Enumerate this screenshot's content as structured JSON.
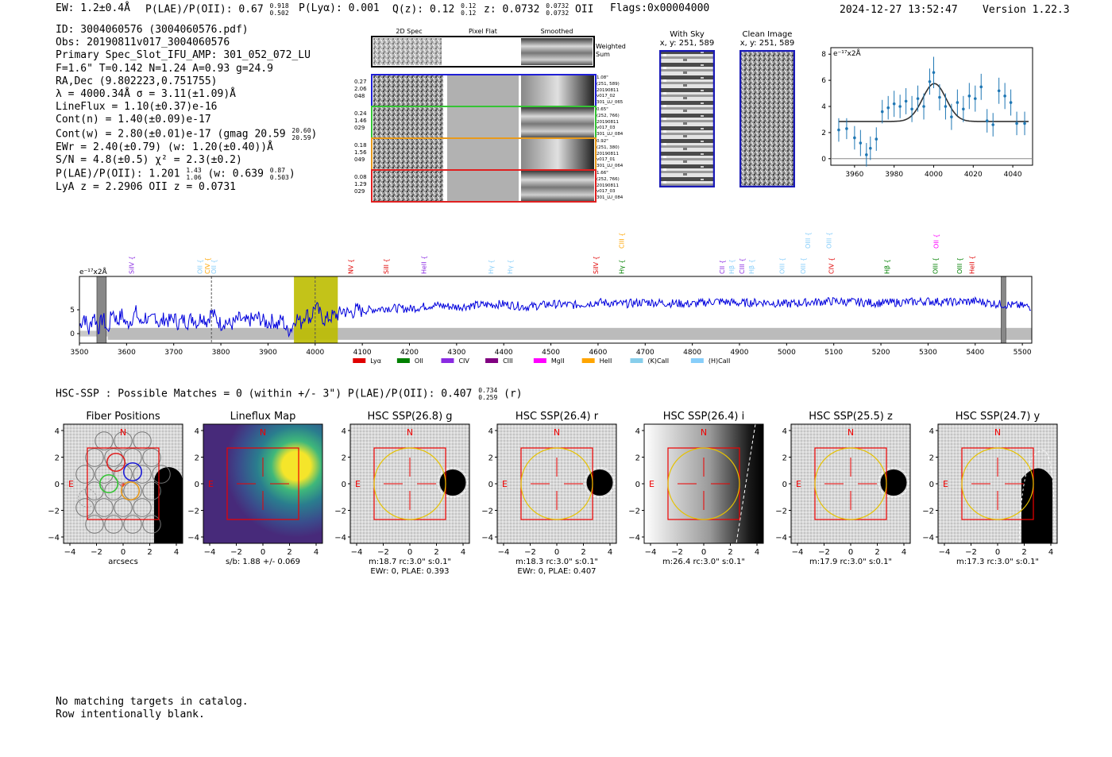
{
  "header": {
    "ew": "EW: 1.2±0.4Å",
    "plae_label": "P(LAE)/P(OII): 0.67",
    "plae_hi": "0.918",
    "plae_lo": "0.502",
    "plya": "P(Lyα): 0.001",
    "qz_label": "Q(z): 0.12",
    "qz_hi": "0.12",
    "qz_lo": "0.12",
    "z_label": "z: 0.0732",
    "z_hi": "0.0732",
    "z_lo": "0.0732",
    "z_suffix": "OII",
    "flags": "Flags:0x00004000",
    "datetime": "2024-12-27 13:52:47",
    "version": "Version 1.22.3"
  },
  "info": {
    "id": "ID: 3004060576 (3004060576.pdf)",
    "obs": "Obs: 20190811v017_3004060576",
    "primary": "Primary Spec_Slot_IFU_AMP: 301_052_072_LU",
    "fparams": "F=1.6\"  T=0.142  N=1.24  A=0.93  g=24.9",
    "radec": "RA,Dec (9.802223,0.751755)",
    "lambda": "λ = 4000.34Å   σ = 3.11(±1.09)Å",
    "lineflux": "LineFlux = 1.10(±0.37)e-16",
    "contn": "Cont(n) = 1.40(±0.09)e-17",
    "contw": "Cont(w) = 2.80(±0.01)e-17 (gmag 20.59",
    "contw_hi": "20.60",
    "contw_lo": "20.59",
    "contw_end": ")",
    "ewr": "EWr = 2.40(±0.79) (w: 1.20(±0.40))Å",
    "sn": "S/N = 4.8(±0.5)  χ² = 2.3(±0.2)",
    "plae": "P(LAE)/P(OII): 1.201",
    "plae_hi": "1.43",
    "plae_lo": "1.06",
    "plae_mid": " (w: 0.639",
    "plae_w_hi": "0.87",
    "plae_w_lo": "0.503",
    "plae_end": ")",
    "redshifts": "LyA z = 2.2906  OII z = 0.0731"
  },
  "cutouts": {
    "col_titles": [
      "2D Spec",
      "Pixel Flat",
      "Smoothed"
    ],
    "weighted_label": "Weighted\nSum",
    "rows": [
      {
        "left": [
          "0.27",
          "2.06",
          "048"
        ],
        "right": [
          "1.08\"",
          "(251, 589)",
          "20190811",
          "v017_02",
          "301_LU_065"
        ],
        "color": "#1f1fd6"
      },
      {
        "left": [
          "0.24",
          "1.46",
          "029"
        ],
        "right": [
          "0.65\"",
          "(252, 766)",
          "20190811",
          "v017_03",
          "301_LU_084"
        ],
        "color": "#35c435"
      },
      {
        "left": [
          "0.18",
          "1.56",
          "049"
        ],
        "right": [
          "0.92\"",
          "(251, 380)",
          "20190811",
          "v017_01",
          "301_LU_064"
        ],
        "color": "#e89a1c"
      },
      {
        "left": [
          "0.08",
          "1.29",
          "029"
        ],
        "right": [
          "1.66\"",
          "(252, 766)",
          "20190811",
          "v017_03",
          "301_LU_084"
        ],
        "color": "#e02020"
      }
    ]
  },
  "sky": {
    "with_sky_title": "With Sky",
    "with_sky_xy": "x, y: 251, 589",
    "clean_title": "Clean Image",
    "clean_xy": "x, y: 251, 589"
  },
  "fit_plot": {
    "unit_label": "e⁻¹⁷x2Å",
    "xticks": [
      "3960",
      "3980",
      "4000",
      "4020",
      "4040"
    ],
    "yticks": [
      "0",
      "2",
      "4",
      "6",
      "8"
    ]
  },
  "spectrum": {
    "unit_label": "e⁻¹⁷x2Å",
    "xticks": [
      "3500",
      "3600",
      "3700",
      "3800",
      "3900",
      "4000",
      "4100",
      "4200",
      "4300",
      "4400",
      "4500",
      "4600",
      "4700",
      "4800",
      "4900",
      "5000",
      "5100",
      "5200",
      "5300",
      "5400",
      "5500"
    ],
    "yticks": [
      "0",
      "5"
    ],
    "line_markers": [
      {
        "label": "SiIV",
        "x": 3615,
        "tier": 0,
        "color": "#8a2be2"
      },
      {
        "label": "OII",
        "x": 3760,
        "tier": 0,
        "color": "#87cefa"
      },
      {
        "label": "CIV",
        "x": 3776,
        "tier": 0,
        "color": "#ffa500"
      },
      {
        "label": "OII",
        "x": 3790,
        "tier": 0,
        "color": "#87cefa"
      },
      {
        "label": "NV",
        "x": 4080,
        "tier": 0,
        "color": "#e00000"
      },
      {
        "label": "SiII",
        "x": 4155,
        "tier": 0,
        "color": "#e00000"
      },
      {
        "label": "HeII",
        "x": 4235,
        "tier": 0,
        "color": "#8a2be2"
      },
      {
        "label": "Hγ",
        "x": 4378,
        "tier": 0,
        "color": "#87cefa"
      },
      {
        "label": "Hγ",
        "x": 4418,
        "tier": 0,
        "color": "#87cefa"
      },
      {
        "label": "SiIV",
        "x": 4600,
        "tier": 0,
        "color": "#e00000"
      },
      {
        "label": "Hγ",
        "x": 4655,
        "tier": 0,
        "color": "#008000"
      },
      {
        "label": "CIII",
        "x": 4655,
        "tier": 1,
        "color": "#ffa500"
      },
      {
        "label": "CII",
        "x": 4868,
        "tier": 0,
        "color": "#8a2be2"
      },
      {
        "label": "Hβ",
        "x": 4888,
        "tier": 0,
        "color": "#87cefa"
      },
      {
        "label": "CIII",
        "x": 4910,
        "tier": 0,
        "color": "#8a2be2"
      },
      {
        "label": "Hβ",
        "x": 4930,
        "tier": 0,
        "color": "#87cefa"
      },
      {
        "label": "OIII",
        "x": 4995,
        "tier": 0,
        "color": "#87cefa"
      },
      {
        "label": "OIII",
        "x": 5040,
        "tier": 0,
        "color": "#87cefa"
      },
      {
        "label": "CIV",
        "x": 5100,
        "tier": 0,
        "color": "#e00000"
      },
      {
        "label": "OIII",
        "x": 5050,
        "tier": 1,
        "color": "#87cefa"
      },
      {
        "label": "OIII",
        "x": 5095,
        "tier": 1,
        "color": "#87cefa"
      },
      {
        "label": "Hβ",
        "x": 5218,
        "tier": 0,
        "color": "#008000"
      },
      {
        "label": "OIII",
        "x": 5320,
        "tier": 0,
        "color": "#008000"
      },
      {
        "label": "OII",
        "x": 5322,
        "tier": 1,
        "color": "#ff00ff"
      },
      {
        "label": "OIII",
        "x": 5372,
        "tier": 0,
        "color": "#008000"
      },
      {
        "label": "HeII",
        "x": 5398,
        "tier": 0,
        "color": "#e00000"
      }
    ],
    "legend": [
      {
        "label": "Lyα",
        "color": "#e00000"
      },
      {
        "label": "OII",
        "color": "#008000"
      },
      {
        "label": "CIV",
        "color": "#8a2be2"
      },
      {
        "label": "CIII",
        "color": "#800080"
      },
      {
        "label": "MgII",
        "color": "#ff00ff"
      },
      {
        "label": "HeII",
        "color": "#ffa500"
      },
      {
        "label": "(K)CaII",
        "color": "#87ceeb"
      },
      {
        "label": "(H)CaII",
        "color": "#87cefa"
      }
    ]
  },
  "hsc": {
    "summary": "HSC-SSP : Possible Matches = 0 (within +/- 3\")  P(LAE)/P(OII): 0.407",
    "summary_hi": "0.734",
    "summary_lo": "0.259",
    "summary_end": "(r)",
    "panels": [
      {
        "title": "Fiber Positions",
        "caption1": "arcsecs",
        "caption2": ""
      },
      {
        "title": "Lineflux Map",
        "caption1": "s/b: 1.88 +/- 0.069",
        "caption2": ""
      },
      {
        "title": "HSC SSP(26.8) g",
        "caption1": "m:18.7 rc:3.0\"  s:0.1\"",
        "caption2": "EWr: 0, PLAE: 0.393"
      },
      {
        "title": "HSC SSP(26.4) r",
        "caption1": "m:18.3 rc:3.0\"  s:0.1\"",
        "caption2": "EWr: 0, PLAE: 0.407"
      },
      {
        "title": "HSC SSP(26.4) i",
        "caption1": "m:26.4 rc:3.0\"  s:0.1\"",
        "caption2": ""
      },
      {
        "title": "HSC SSP(25.5) z",
        "caption1": "m:17.9 rc:3.0\"  s:0.1\"",
        "caption2": ""
      },
      {
        "title": "HSC SSP(24.7) y",
        "caption1": "m:17.3 rc:3.0\"  s:0.1\"",
        "caption2": ""
      }
    ],
    "xticks": [
      "−4",
      "−2",
      "0",
      "2",
      "4"
    ],
    "yticks": [
      "4",
      "2",
      "0",
      "−2",
      "−4"
    ],
    "north_label": "N",
    "east_label": "E"
  },
  "footer": {
    "line1": "No matching targets in catalog.",
    "line2": "Row intentionally blank."
  },
  "chart_data": [
    {
      "type": "scatter",
      "title": "",
      "xlabel": "",
      "ylabel": "e⁻¹⁷x2Å",
      "xlim": [
        3948,
        4050
      ],
      "ylim": [
        -0.5,
        8.5
      ],
      "x": [
        3952,
        3956,
        3960,
        3963,
        3966,
        3968,
        3971,
        3974,
        3977,
        3980,
        3983,
        3986,
        3989,
        3992,
        3995,
        3998,
        4000,
        4003,
        4006,
        4009,
        4012,
        4015,
        4018,
        4021,
        4024,
        4027,
        4030,
        4033,
        4036,
        4039,
        4042,
        4046
      ],
      "values": [
        2.2,
        2.3,
        1.6,
        1.2,
        0.3,
        0.8,
        1.5,
        3.6,
        3.9,
        4.2,
        4.0,
        4.4,
        3.8,
        4.6,
        4.0,
        5.9,
        6.6,
        4.7,
        4.0,
        3.2,
        4.3,
        3.8,
        4.8,
        4.6,
        5.5,
        2.9,
        2.6,
        5.2,
        4.8,
        4.3,
        2.7,
        2.7
      ],
      "errors": [
        0.9,
        0.8,
        0.9,
        1.0,
        0.9,
        0.9,
        0.9,
        0.9,
        0.9,
        1.0,
        0.9,
        1.0,
        1.0,
        1.0,
        1.0,
        1.0,
        1.2,
        1.0,
        1.0,
        1.0,
        1.0,
        1.0,
        1.0,
        1.0,
        1.0,
        0.9,
        0.9,
        1.0,
        1.0,
        1.0,
        0.9,
        0.9
      ],
      "fit": {
        "continuum": 2.85,
        "center": 4000.34,
        "sigma": 3.11,
        "peak": 5.75
      }
    },
    {
      "type": "line",
      "title": "",
      "xlabel": "",
      "ylabel": "e⁻¹⁷x2Å",
      "xlim": [
        3500,
        5520
      ],
      "ylim": [
        -2,
        12
      ],
      "highlight_range": [
        3955,
        4048
      ],
      "marker_lines": [
        3780,
        4000
      ],
      "mask_ranges": [
        [
          3537,
          3557
        ],
        [
          5455,
          5465
        ]
      ],
      "series": [
        {
          "x": [
            3500,
            3510,
            3520,
            3530,
            3540,
            3550,
            3560,
            3570,
            3580,
            3590,
            3600,
            3610,
            3620,
            3630,
            3640,
            3650,
            3660,
            3670,
            3680,
            3690,
            3700,
            3710,
            3720,
            3730,
            3740,
            3750,
            3760,
            3770,
            3780,
            3790,
            3800,
            3810,
            3820,
            3830,
            3840,
            3850,
            3860,
            3870,
            3880,
            3890,
            3900,
            3910,
            3920,
            3930,
            3940,
            3950,
            3960,
            3970,
            3980,
            3990,
            4000,
            4010,
            4020,
            4030,
            4040,
            4050,
            4060,
            4070,
            4080,
            4090,
            4100,
            4150,
            4200,
            4250,
            4300,
            4350,
            4400,
            4450,
            4500,
            4550,
            4600,
            4650,
            4700,
            4750,
            4800,
            4850,
            4900,
            4950,
            5000,
            5050,
            5100,
            5150,
            5200,
            5250,
            5300,
            5350,
            5400,
            5450,
            5500,
            5520
          ],
          "values": [
            1.5,
            3.8,
            0.5,
            4.2,
            1.0,
            3.5,
            0.2,
            5.0,
            2.5,
            4.0,
            1.8,
            3.0,
            4.5,
            2.0,
            3.6,
            2.2,
            4.0,
            1.9,
            3.2,
            2.6,
            3.4,
            2.1,
            3.0,
            2.4,
            3.5,
            2.2,
            3.9,
            2.6,
            4.5,
            3.2,
            2.0,
            2.6,
            1.8,
            2.4,
            3.2,
            2.2,
            2.8,
            3.0,
            3.4,
            2.6,
            2.2,
            2.8,
            1.8,
            3.2,
            0.5,
            1.2,
            3.6,
            2.2,
            4.5,
            3.0,
            6.0,
            4.2,
            2.8,
            3.4,
            3.8,
            4.0,
            5.0,
            4.2,
            4.6,
            5.0,
            4.8,
            5.4,
            5.2,
            6.0,
            5.6,
            6.0,
            6.2,
            5.6,
            6.2,
            6.0,
            6.6,
            6.2,
            6.6,
            6.4,
            6.2,
            6.8,
            6.4,
            6.6,
            6.2,
            6.6,
            6.8,
            6.6,
            6.4,
            6.6,
            6.8,
            6.6,
            6.8,
            6.2,
            5.8,
            5.6
          ]
        }
      ]
    }
  ]
}
